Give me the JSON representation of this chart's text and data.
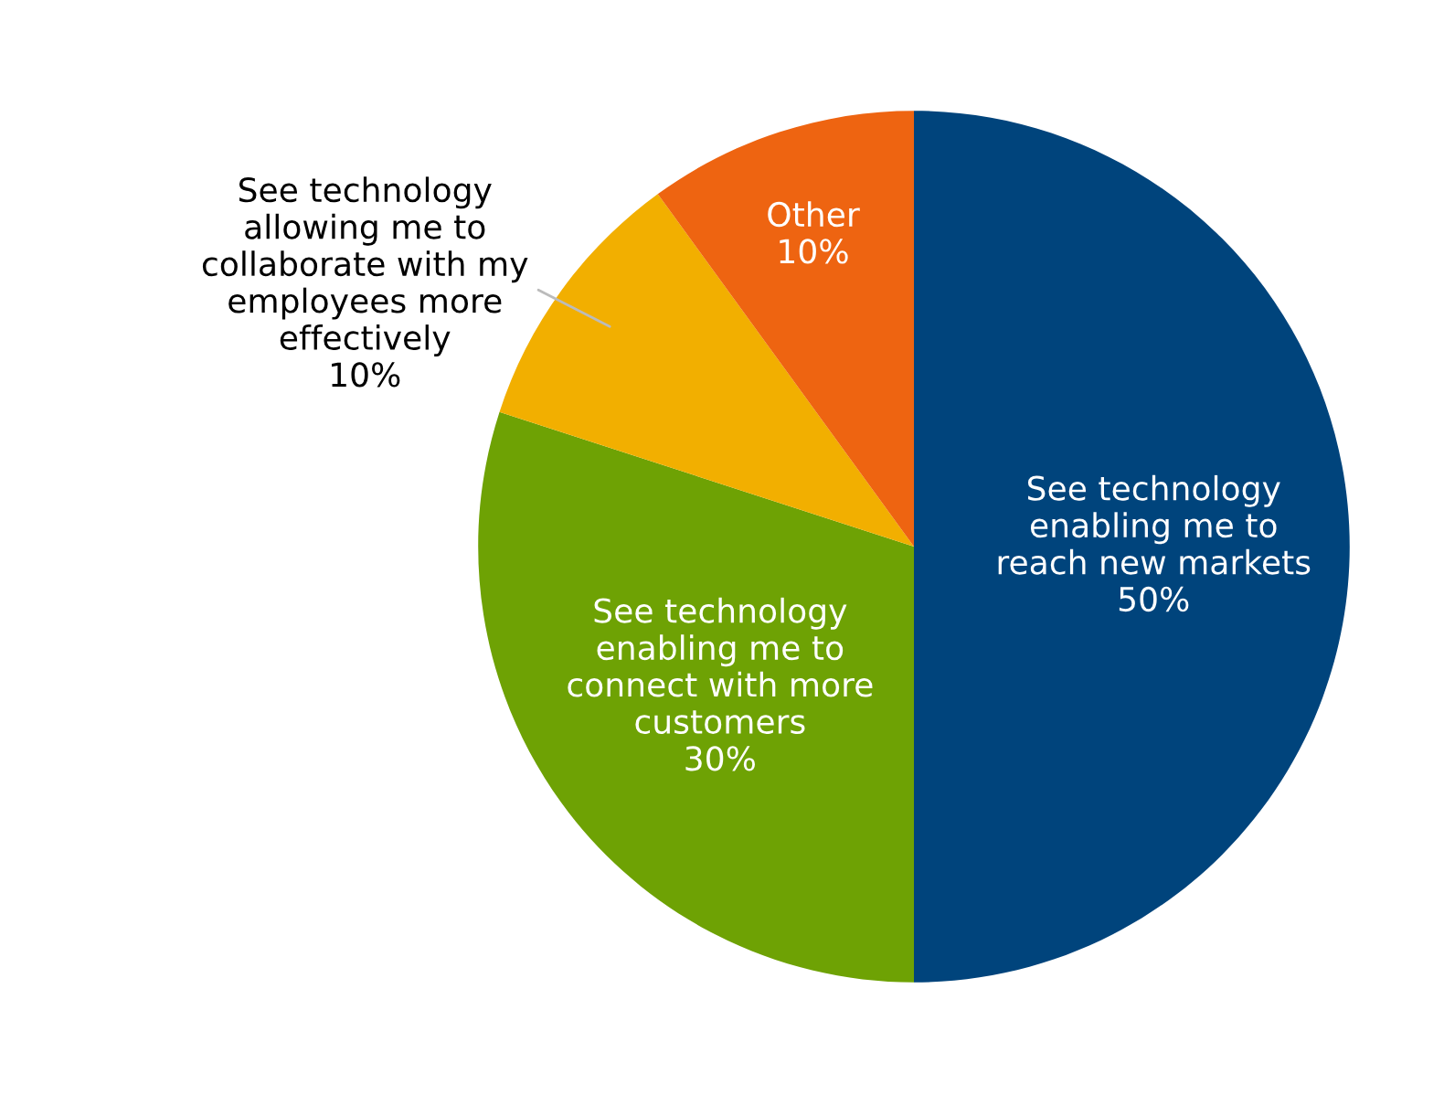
{
  "chart_data": {
    "type": "pie",
    "categories": [
      "See technology\nenabling me to\nreach new markets",
      "See technology\nenabling me to\nconnect with more\ncustomers",
      "See technology\nallowing me to\ncollaborate with my\nemployees more\neffectively",
      "Other"
    ],
    "values": [
      50,
      30,
      10,
      10
    ],
    "colors": [
      "#00447c",
      "#6ea204",
      "#f2af00",
      "#ee6411"
    ],
    "value_labels": [
      "50%",
      "30%",
      "10%",
      "10%"
    ]
  }
}
